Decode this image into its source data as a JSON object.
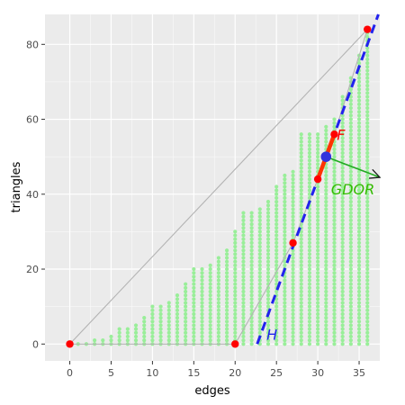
{
  "chart_data": {
    "type": "scatter",
    "xlabel": "edges",
    "ylabel": "triangles",
    "xlim": [
      -3,
      37.5
    ],
    "ylim": [
      -4.5,
      88
    ],
    "x_ticks": [
      0,
      5,
      10,
      15,
      20,
      25,
      30,
      35
    ],
    "y_ticks": [
      0,
      20,
      40,
      60,
      80
    ],
    "grid": true,
    "colors": {
      "panel": "#ebebeb",
      "grid": "#ffffff",
      "points": "#99ee99",
      "hull": "#b3b3b3",
      "red_points": "#ff0000",
      "segment_F": "#ff3300",
      "line_H": "#2222ee",
      "center_point": "#3333dd",
      "arrow": "#22aa22",
      "label_F": "#ff0000",
      "label_GDOR": "#33bb00",
      "label_H": "#2222ee"
    },
    "point_columns": [
      {
        "x": 0,
        "ymax": 0
      },
      {
        "x": 1,
        "ymax": 0
      },
      {
        "x": 2,
        "ymax": 0
      },
      {
        "x": 3,
        "ymax": 1
      },
      {
        "x": 4,
        "ymax": 1
      },
      {
        "x": 5,
        "ymax": 2
      },
      {
        "x": 6,
        "ymax": 4
      },
      {
        "x": 7,
        "ymax": 4
      },
      {
        "x": 8,
        "ymax": 5
      },
      {
        "x": 9,
        "ymax": 7
      },
      {
        "x": 10,
        "ymax": 10
      },
      {
        "x": 11,
        "ymax": 10
      },
      {
        "x": 12,
        "ymax": 11
      },
      {
        "x": 13,
        "ymax": 13
      },
      {
        "x": 14,
        "ymax": 16
      },
      {
        "x": 15,
        "ymax": 20
      },
      {
        "x": 16,
        "ymax": 20
      },
      {
        "x": 17,
        "ymax": 21
      },
      {
        "x": 18,
        "ymax": 23
      },
      {
        "x": 19,
        "ymax": 25
      },
      {
        "x": 20,
        "ymax": 30
      },
      {
        "x": 21,
        "ymax": 35
      },
      {
        "x": 22,
        "ymax": 35
      },
      {
        "x": 23,
        "ymax": 36
      },
      {
        "x": 24,
        "ymax": 38
      },
      {
        "x": 25,
        "ymax": 42
      },
      {
        "x": 26,
        "ymax": 45
      },
      {
        "x": 27,
        "ymax": 46
      },
      {
        "x": 28,
        "ymax": 56
      },
      {
        "x": 29,
        "ymax": 56
      },
      {
        "x": 30,
        "ymax": 56
      },
      {
        "x": 31,
        "ymax": 58
      },
      {
        "x": 32,
        "ymax": 60
      },
      {
        "x": 33,
        "ymax": 66
      },
      {
        "x": 34,
        "ymax": 71
      },
      {
        "x": 35,
        "ymax": 77
      },
      {
        "x": 36,
        "ymax": 84
      }
    ],
    "hull": [
      [
        0,
        0
      ],
      [
        20,
        0
      ],
      [
        27,
        27
      ],
      [
        30,
        44
      ],
      [
        32,
        56
      ],
      [
        36,
        84
      ],
      [
        0,
        0
      ]
    ],
    "red_points": [
      [
        0,
        0
      ],
      [
        20,
        0
      ],
      [
        27,
        27
      ],
      [
        30,
        44
      ],
      [
        32,
        56
      ],
      [
        36,
        84
      ]
    ],
    "segment_F": [
      [
        30,
        44
      ],
      [
        32,
        56
      ]
    ],
    "line_H": {
      "from": [
        22.67,
        0
      ],
      "to": [
        37.33,
        88
      ]
    },
    "center_point": [
      31,
      50
    ],
    "arrow": {
      "from": [
        31,
        50
      ],
      "to": [
        37.5,
        44.5
      ]
    },
    "annotations": [
      {
        "id": "F",
        "text": "F",
        "x": 32.3,
        "y": 54.5
      },
      {
        "id": "GDOR",
        "text": "GDOR",
        "x": 31.6,
        "y": 40
      },
      {
        "id": "H",
        "text": "H",
        "x": 23.8,
        "y": 1.2
      }
    ]
  }
}
